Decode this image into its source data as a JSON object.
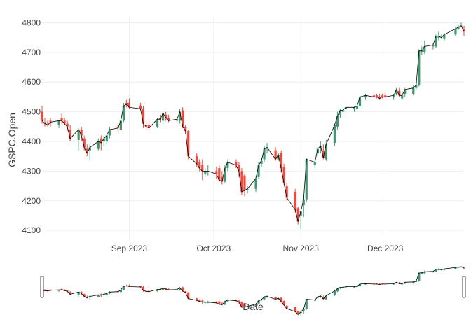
{
  "chart_data": {
    "type": "candlestick",
    "x_axis": {
      "label": "Date",
      "start": "2023-08-01",
      "end": "2023-12-29",
      "ticks": [
        {
          "date": "2023-09-01",
          "label": "Sep 2023"
        },
        {
          "date": "2023-10-01",
          "label": "Oct 2023"
        },
        {
          "date": "2023-11-01",
          "label": "Nov 2023"
        },
        {
          "date": "2023-12-01",
          "label": "Dec 2023"
        }
      ]
    },
    "y_axis": {
      "label": "GSPC.Open",
      "ylim": [
        4065,
        4820
      ],
      "ticks": [
        4100,
        4200,
        4300,
        4400,
        4500,
        4600,
        4700,
        4800
      ]
    },
    "grid": true,
    "rangeslider": true,
    "colors": {
      "increasing": "#3d9970",
      "decreasing": "#ff4136",
      "line": "#000000",
      "grid": "#eeeeee",
      "text": "#444444"
    },
    "series": {
      "dates": [
        "2023-08-01",
        "2023-08-02",
        "2023-08-03",
        "2023-08-04",
        "2023-08-07",
        "2023-08-08",
        "2023-08-09",
        "2023-08-10",
        "2023-08-11",
        "2023-08-14",
        "2023-08-15",
        "2023-08-16",
        "2023-08-17",
        "2023-08-18",
        "2023-08-21",
        "2023-08-22",
        "2023-08-23",
        "2023-08-24",
        "2023-08-25",
        "2023-08-28",
        "2023-08-29",
        "2023-08-30",
        "2023-08-31",
        "2023-09-01",
        "2023-09-05",
        "2023-09-06",
        "2023-09-07",
        "2023-09-08",
        "2023-09-11",
        "2023-09-12",
        "2023-09-13",
        "2023-09-14",
        "2023-09-15",
        "2023-09-18",
        "2023-09-19",
        "2023-09-20",
        "2023-09-21",
        "2023-09-22",
        "2023-09-25",
        "2023-09-26",
        "2023-09-27",
        "2023-09-28",
        "2023-09-29",
        "2023-10-02",
        "2023-10-03",
        "2023-10-04",
        "2023-10-05",
        "2023-10-06",
        "2023-10-09",
        "2023-10-10",
        "2023-10-11",
        "2023-10-12",
        "2023-10-13",
        "2023-10-16",
        "2023-10-17",
        "2023-10-18",
        "2023-10-19",
        "2023-10-20",
        "2023-10-23",
        "2023-10-24",
        "2023-10-25",
        "2023-10-26",
        "2023-10-27",
        "2023-10-30",
        "2023-10-31",
        "2023-11-01",
        "2023-11-02",
        "2023-11-03",
        "2023-11-06",
        "2023-11-07",
        "2023-11-08",
        "2023-11-09",
        "2023-11-10",
        "2023-11-13",
        "2023-11-14",
        "2023-11-15",
        "2023-11-16",
        "2023-11-17",
        "2023-11-20",
        "2023-11-21",
        "2023-11-22",
        "2023-11-24",
        "2023-11-27",
        "2023-11-28",
        "2023-11-29",
        "2023-11-30",
        "2023-12-01",
        "2023-12-04",
        "2023-12-05",
        "2023-12-06",
        "2023-12-07",
        "2023-12-08",
        "2023-12-11",
        "2023-12-12",
        "2023-12-13",
        "2023-12-14",
        "2023-12-15",
        "2023-12-18",
        "2023-12-19",
        "2023-12-20",
        "2023-12-21",
        "2023-12-22",
        "2023-12-26",
        "2023-12-27",
        "2023-12-28",
        "2023-12-29"
      ],
      "open": [
        4500,
        4465,
        4460,
        4470,
        4455,
        4480,
        4470,
        4460,
        4440,
        4405,
        4440,
        4410,
        4375,
        4370,
        4375,
        4410,
        4400,
        4400,
        4420,
        4450,
        4440,
        4470,
        4530,
        4530,
        4520,
        4510,
        4455,
        4455,
        4450,
        4480,
        4470,
        4490,
        4480,
        4470,
        4470,
        4505,
        4450,
        4435,
        4350,
        4330,
        4320,
        4290,
        4300,
        4300,
        4310,
        4280,
        4265,
        4310,
        4330,
        4320,
        4300,
        4285,
        4235,
        4240,
        4280,
        4325,
        4340,
        4375,
        4370,
        4340,
        4360,
        4315,
        4250,
        4230,
        4175,
        4150,
        4185,
        4205,
        4320,
        4360,
        4380,
        4370,
        4340,
        4395,
        4450,
        4490,
        4500,
        4510,
        4510,
        4510,
        4520,
        4550,
        4555,
        4555,
        4550,
        4555,
        4555,
        4550,
        4560,
        4570,
        4545,
        4560,
        4560,
        4580,
        4590,
        4700,
        4700,
        4720,
        4720,
        4750,
        4750,
        4745,
        4760,
        4780,
        4790,
        4780
      ],
      "high": [
        4520,
        4480,
        4470,
        4480,
        4470,
        4495,
        4480,
        4470,
        4455,
        4445,
        4450,
        4420,
        4390,
        4390,
        4410,
        4420,
        4420,
        4420,
        4450,
        4460,
        4480,
        4530,
        4540,
        4545,
        4530,
        4520,
        4470,
        4470,
        4480,
        4490,
        4500,
        4500,
        4490,
        4480,
        4510,
        4515,
        4455,
        4440,
        4360,
        4340,
        4340,
        4310,
        4320,
        4315,
        4320,
        4300,
        4320,
        4340,
        4340,
        4330,
        4310,
        4290,
        4250,
        4280,
        4330,
        4345,
        4385,
        4395,
        4380,
        4360,
        4370,
        4325,
        4260,
        4240,
        4180,
        4160,
        4215,
        4345,
        4340,
        4380,
        4400,
        4390,
        4405,
        4460,
        4500,
        4510,
        4515,
        4520,
        4520,
        4525,
        4555,
        4560,
        4565,
        4560,
        4560,
        4560,
        4565,
        4560,
        4580,
        4580,
        4570,
        4580,
        4590,
        4600,
        4710,
        4720,
        4740,
        4730,
        4760,
        4770,
        4760,
        4765,
        4785,
        4795,
        4800,
        4790
      ],
      "low": [
        4460,
        4450,
        4450,
        4450,
        4445,
        4460,
        4455,
        4435,
        4400,
        4370,
        4400,
        4370,
        4350,
        4335,
        4370,
        4370,
        4385,
        4390,
        4410,
        4430,
        4435,
        4465,
        4515,
        4510,
        4505,
        4445,
        4440,
        4440,
        4445,
        4465,
        4460,
        4470,
        4465,
        4460,
        4460,
        4445,
        4425,
        4340,
        4315,
        4300,
        4270,
        4280,
        4285,
        4275,
        4265,
        4255,
        4260,
        4300,
        4310,
        4280,
        4220,
        4215,
        4225,
        4230,
        4275,
        4315,
        4330,
        4360,
        4335,
        4335,
        4295,
        4255,
        4200,
        4160,
        4120,
        4105,
        4145,
        4195,
        4310,
        4350,
        4360,
        4340,
        4335,
        4385,
        4440,
        4480,
        4495,
        4500,
        4500,
        4505,
        4515,
        4540,
        4545,
        4545,
        4540,
        4545,
        4545,
        4540,
        4555,
        4550,
        4540,
        4550,
        4555,
        4575,
        4585,
        4690,
        4695,
        4710,
        4715,
        4740,
        4745,
        4740,
        4755,
        4775,
        4785,
        4755
      ],
      "close": [
        4470,
        4460,
        4455,
        4465,
        4470,
        4470,
        4460,
        4450,
        4410,
        4440,
        4420,
        4380,
        4360,
        4380,
        4400,
        4395,
        4410,
        4420,
        4440,
        4445,
        4470,
        4520,
        4525,
        4515,
        4510,
        4460,
        4450,
        4445,
        4475,
        4475,
        4495,
        4480,
        4470,
        4475,
        4500,
        4450,
        4435,
        4350,
        4325,
        4310,
        4300,
        4300,
        4300,
        4290,
        4270,
        4265,
        4310,
        4330,
        4320,
        4300,
        4230,
        4235,
        4240,
        4275,
        4320,
        4335,
        4375,
        4380,
        4340,
        4355,
        4310,
        4260,
        4210,
        4170,
        4130,
        4165,
        4205,
        4340,
        4330,
        4375,
        4385,
        4345,
        4390,
        4455,
        4485,
        4505,
        4505,
        4515,
        4515,
        4520,
        4550,
        4555,
        4550,
        4550,
        4545,
        4550,
        4550,
        4555,
        4575,
        4555,
        4555,
        4575,
        4580,
        4590,
        4705,
        4705,
        4720,
        4725,
        4755,
        4755,
        4750,
        4760,
        4780,
        4785,
        4790,
        4770
      ]
    }
  }
}
